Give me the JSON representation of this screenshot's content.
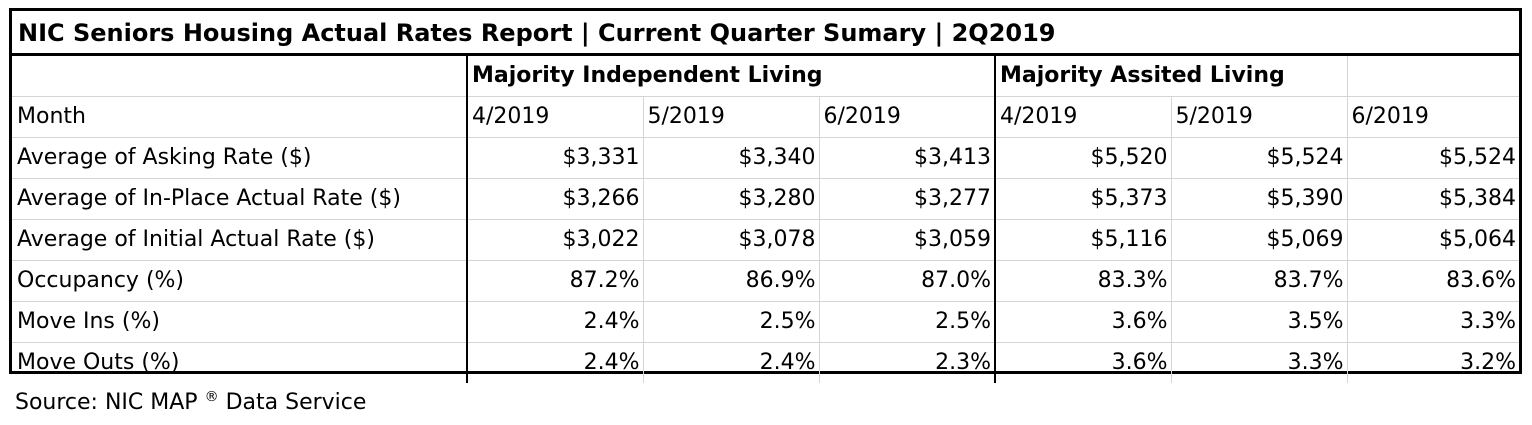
{
  "title": "NIC Seniors Housing Actual Rates Report | Current Quarter Sumary | 2Q2019",
  "groups": {
    "il": "Majority Independent Living",
    "al": "Majority Assited Living"
  },
  "month_label": "Month",
  "months": [
    "4/2019",
    "5/2019",
    "6/2019",
    "4/2019",
    "5/2019",
    "6/2019"
  ],
  "rows": [
    {
      "label": "Average of Asking Rate ($)",
      "values": [
        "$3,331",
        "$3,340",
        "$3,413",
        "$5,520",
        "$5,524",
        "$5,524"
      ]
    },
    {
      "label": "Average of In-Place Actual Rate ($)",
      "values": [
        "$3,266",
        "$3,280",
        "$3,277",
        "$5,373",
        "$5,390",
        "$5,384"
      ]
    },
    {
      "label": "Average of Initial Actual Rate ($)",
      "values": [
        "$3,022",
        "$3,078",
        "$3,059",
        "$5,116",
        "$5,069",
        "$5,064"
      ]
    },
    {
      "label": "Occupancy (%)",
      "values": [
        "87.2%",
        "86.9%",
        "87.0%",
        "83.3%",
        "83.7%",
        "83.6%"
      ]
    },
    {
      "label": "Move Ins (%)",
      "values": [
        "2.4%",
        "2.5%",
        "2.5%",
        "3.6%",
        "3.5%",
        "3.3%"
      ]
    },
    {
      "label": "Move Outs (%)",
      "values": [
        "2.4%",
        "2.4%",
        "2.3%",
        "3.6%",
        "3.3%",
        "3.2%"
      ]
    }
  ],
  "source": {
    "text": "Source: NIC MAP",
    "mark": "®",
    "suffix": "Data Service"
  }
}
